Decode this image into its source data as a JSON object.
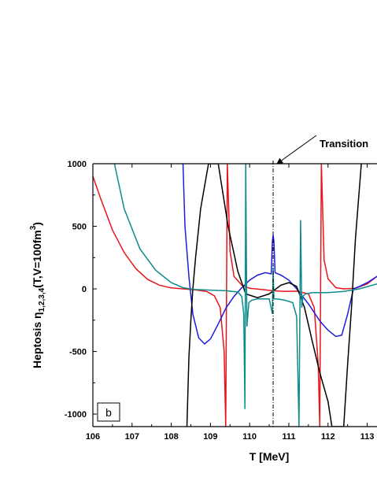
{
  "chart_data": {
    "type": "line",
    "title": "",
    "xlabel": "T [MeV]",
    "ylabel": "Heptosis η1,2,3,4(T,V=100fm3)",
    "xlim": [
      106,
      113.25
    ],
    "ylim": [
      -1100,
      1000
    ],
    "x_ticks": [
      "106",
      "107",
      "108",
      "109",
      "110",
      "111",
      "112",
      "113"
    ],
    "y_ticks": [
      "1000",
      "500",
      "0",
      "-500",
      "-1000"
    ],
    "panel_label": "b",
    "annotation": {
      "text": "Transition",
      "x": 110.6
    },
    "transition_T": 110.6,
    "grid": false,
    "series": [
      {
        "color": "#e8141c",
        "x": [
          106.0,
          106.2,
          106.5,
          106.8,
          107.1,
          107.4,
          107.7,
          108.0,
          108.3,
          108.6,
          108.9,
          109.1,
          109.25,
          109.35,
          109.39,
          109.43,
          109.5,
          109.6,
          109.8,
          110.0,
          110.3,
          110.6,
          110.9,
          111.2,
          111.5,
          111.65,
          111.75,
          111.79,
          111.83,
          111.9,
          112.0,
          112.2,
          112.4,
          112.7,
          113.0,
          113.25
        ],
        "y": [
          900,
          720,
          470,
          290,
          160,
          75,
          30,
          8,
          0,
          -8,
          -20,
          -55,
          -150,
          -500,
          -1100,
          1000,
          300,
          100,
          30,
          5,
          -5,
          -15,
          -20,
          -18,
          -40,
          -150,
          -600,
          -1100,
          1000,
          230,
          80,
          10,
          0,
          5,
          40,
          100
        ]
      },
      {
        "color": "#1c1cdc",
        "x": [
          108.3,
          108.35,
          108.45,
          108.55,
          108.7,
          108.85,
          109.0,
          109.2,
          109.4,
          109.6,
          109.8,
          110.0,
          110.2,
          110.4,
          110.55,
          110.58,
          110.6,
          110.62,
          110.65,
          110.8,
          111.0,
          111.2,
          111.5,
          111.8,
          112.0,
          112.2,
          112.35,
          112.5,
          112.65,
          112.8,
          113.0,
          113.25
        ],
        "y": [
          1000,
          500,
          100,
          -200,
          -390,
          -440,
          -400,
          -280,
          -150,
          -60,
          10,
          70,
          110,
          130,
          120,
          380,
          430,
          380,
          130,
          110,
          70,
          0,
          -120,
          -260,
          -330,
          -380,
          -370,
          -200,
          0,
          20,
          50,
          100
        ]
      },
      {
        "color": "#000000",
        "x": [
          108.4,
          108.45,
          108.5,
          108.55,
          108.62,
          108.75,
          108.95,
          109.2,
          109.45,
          109.7,
          109.9,
          110.2,
          110.5,
          110.8,
          111.0,
          111.2,
          111.4,
          111.6,
          111.8,
          112.0,
          112.1,
          112.4,
          112.5,
          112.6,
          112.7,
          112.85
        ],
        "y": [
          -1100,
          -550,
          -250,
          0,
          250,
          640,
          1000,
          1000,
          500,
          140,
          -40,
          -70,
          -40,
          30,
          50,
          20,
          -150,
          -420,
          -680,
          -900,
          -1100,
          -1100,
          -600,
          -150,
          400,
          1000
        ]
      },
      {
        "color": "#0e8c8c",
        "x": [
          106.55,
          106.8,
          107.2,
          107.6,
          108.0,
          108.3,
          108.6,
          109.0,
          109.4,
          109.7,
          109.8,
          109.85,
          109.88,
          109.9,
          109.93,
          109.98,
          110.05,
          110.2,
          110.5,
          110.58,
          110.6,
          110.62,
          110.7,
          110.9,
          111.1,
          111.2,
          111.26,
          111.3,
          111.33,
          111.36,
          111.42,
          111.6,
          112.0,
          112.4,
          112.8,
          113.25
        ],
        "y": [
          1000,
          640,
          320,
          150,
          50,
          10,
          -5,
          -10,
          -15,
          -25,
          -60,
          -200,
          -960,
          1000,
          -300,
          -110,
          -90,
          -80,
          -80,
          -200,
          170,
          -80,
          -80,
          -90,
          -110,
          -220,
          -1100,
          550,
          -150,
          -60,
          -40,
          -30,
          -30,
          -20,
          0,
          40
        ]
      }
    ]
  }
}
